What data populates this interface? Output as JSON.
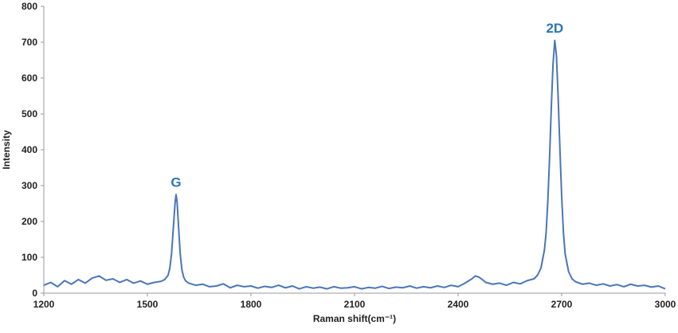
{
  "chart_data": {
    "type": "line",
    "xlabel": "Raman shift(cm⁻¹)",
    "ylabel": "Intensity",
    "color": "#4a76b8",
    "xlim": [
      1200,
      3000
    ],
    "xticks": [
      1200,
      1500,
      1800,
      2100,
      2400,
      2700,
      3000
    ],
    "ylim": [
      0,
      800
    ],
    "yticks": [
      0,
      100,
      200,
      300,
      400,
      500,
      600,
      700,
      800
    ],
    "annotations": [
      {
        "text": "G",
        "x": 1583
      },
      {
        "text": "2D",
        "x": 2680
      }
    ],
    "x": [
      1200,
      1220,
      1240,
      1260,
      1280,
      1300,
      1320,
      1340,
      1360,
      1380,
      1400,
      1420,
      1440,
      1460,
      1480,
      1500,
      1520,
      1540,
      1550,
      1560,
      1565,
      1570,
      1575,
      1580,
      1583,
      1586,
      1590,
      1595,
      1600,
      1605,
      1610,
      1620,
      1640,
      1660,
      1680,
      1700,
      1720,
      1740,
      1760,
      1780,
      1800,
      1820,
      1840,
      1860,
      1880,
      1900,
      1920,
      1940,
      1960,
      1980,
      2000,
      2020,
      2040,
      2060,
      2080,
      2100,
      2120,
      2140,
      2160,
      2180,
      2200,
      2220,
      2240,
      2260,
      2280,
      2300,
      2320,
      2340,
      2360,
      2380,
      2400,
      2420,
      2440,
      2450,
      2460,
      2470,
      2480,
      2500,
      2520,
      2540,
      2560,
      2580,
      2600,
      2620,
      2630,
      2640,
      2650,
      2655,
      2660,
      2665,
      2670,
      2675,
      2680,
      2685,
      2690,
      2695,
      2700,
      2705,
      2710,
      2720,
      2730,
      2740,
      2760,
      2780,
      2800,
      2820,
      2840,
      2860,
      2880,
      2900,
      2920,
      2940,
      2960,
      2980,
      3000
    ],
    "values": [
      22,
      30,
      18,
      35,
      25,
      38,
      28,
      42,
      48,
      36,
      40,
      30,
      38,
      28,
      34,
      25,
      30,
      33,
      38,
      50,
      70,
      110,
      180,
      250,
      275,
      255,
      190,
      110,
      65,
      45,
      35,
      28,
      22,
      25,
      18,
      20,
      26,
      15,
      22,
      18,
      20,
      14,
      19,
      16,
      22,
      15,
      20,
      12,
      18,
      14,
      17,
      12,
      18,
      14,
      15,
      18,
      12,
      16,
      14,
      19,
      13,
      17,
      15,
      20,
      14,
      18,
      15,
      20,
      16,
      22,
      18,
      28,
      40,
      48,
      45,
      38,
      30,
      25,
      28,
      22,
      30,
      26,
      35,
      40,
      50,
      70,
      120,
      170,
      260,
      380,
      520,
      640,
      705,
      660,
      540,
      400,
      270,
      170,
      110,
      60,
      40,
      32,
      25,
      28,
      22,
      26,
      20,
      24,
      18,
      25,
      20,
      22,
      17,
      20,
      12
    ]
  }
}
